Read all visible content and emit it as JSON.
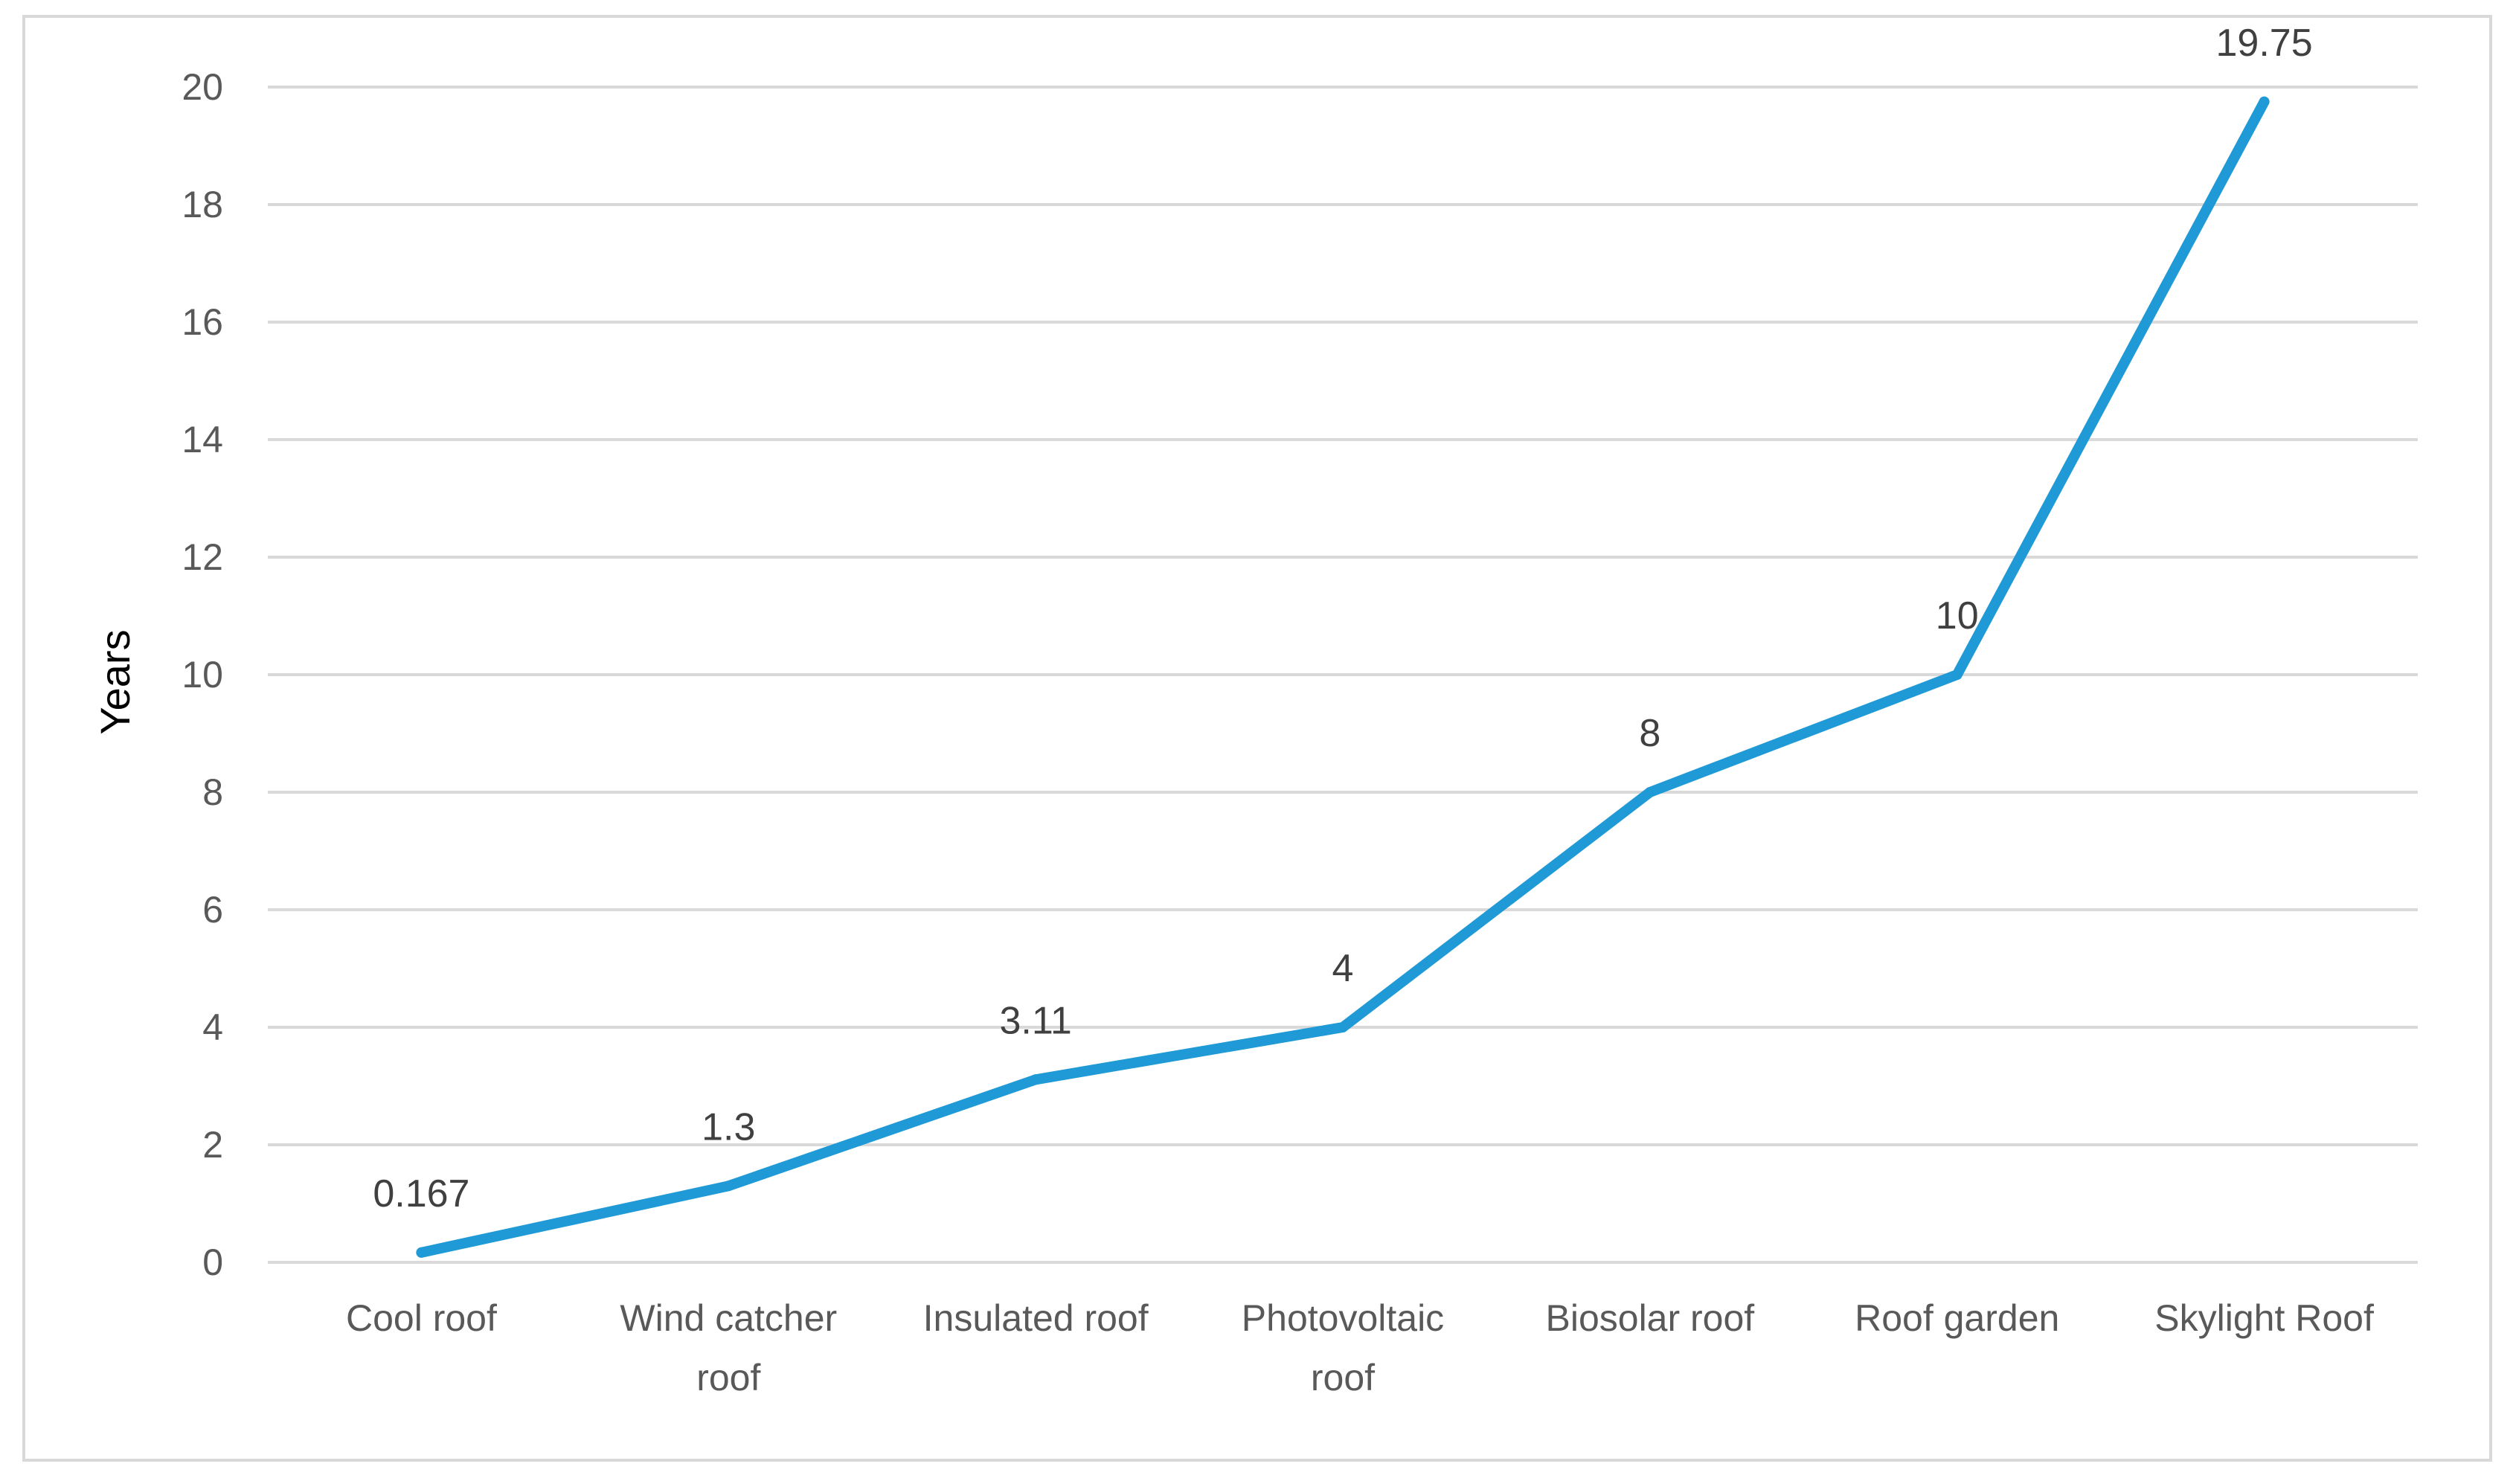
{
  "chart_data": {
    "type": "line",
    "title": "",
    "xlabel": "",
    "ylabel": "Years",
    "categories": [
      [
        "Cool roof"
      ],
      [
        "Wind catcher",
        "roof"
      ],
      [
        "Insulated roof"
      ],
      [
        "Photovoltaic",
        "roof"
      ],
      [
        "Biosolar roof"
      ],
      [
        "Roof garden"
      ],
      [
        "Skylight Roof"
      ]
    ],
    "series": [
      {
        "values": [
          0.167,
          1.3,
          3.11,
          4,
          8,
          10,
          19.75
        ],
        "labels": [
          "0.167",
          "1.3",
          "3.11",
          "4",
          "8",
          "10",
          "19.75"
        ],
        "color": "#1f9ad6"
      }
    ],
    "ylim": [
      0,
      20
    ],
    "yticks": [
      0,
      2,
      4,
      6,
      8,
      10,
      12,
      14,
      16,
      18,
      20
    ],
    "grid": true,
    "legend": "none",
    "colors": {
      "gridline": "#d9d9d9",
      "text": "#595959",
      "border": "#d9d9d9"
    }
  }
}
